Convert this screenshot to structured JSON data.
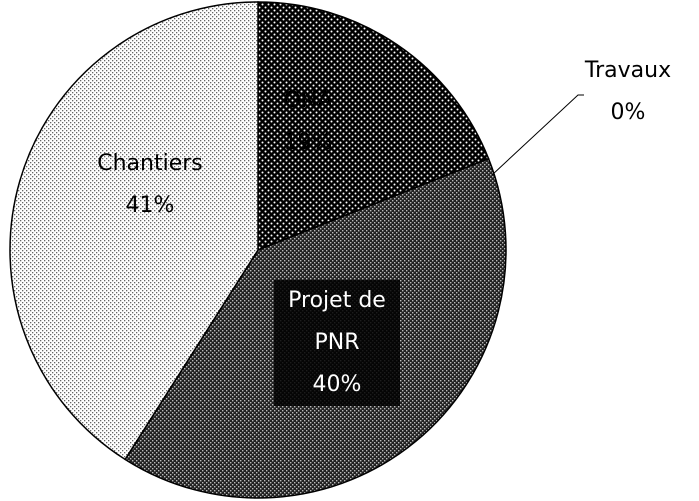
{
  "chart_data": {
    "type": "pie",
    "categories": [
      "ONA",
      "Travaux",
      "Projet de PNR",
      "Chantiers"
    ],
    "values": [
      19,
      0,
      40,
      41
    ],
    "value_labels": [
      "19%",
      "0%",
      "40%",
      "41%"
    ]
  }
}
